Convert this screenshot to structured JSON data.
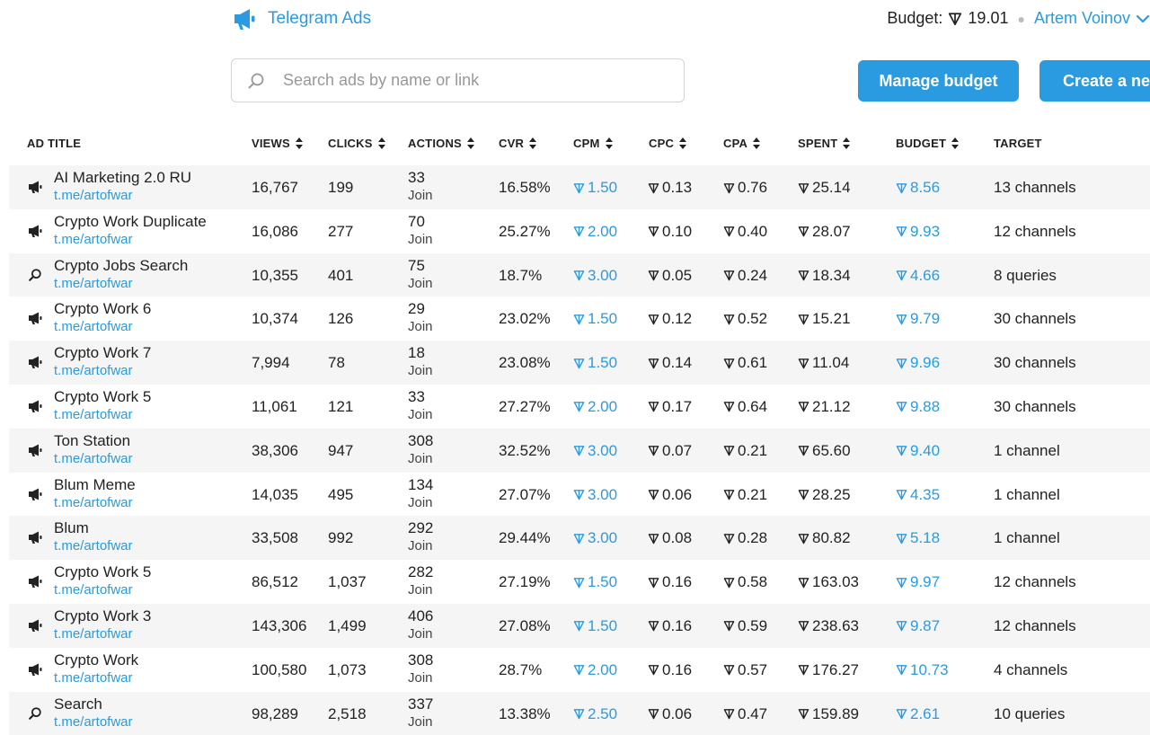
{
  "brand": {
    "name": "Telegram Ads"
  },
  "header": {
    "budget_label": "Budget:",
    "budget_value": "19.01",
    "user_name": "Artem Voinov"
  },
  "search": {
    "placeholder": "Search ads by name or link",
    "value": ""
  },
  "buttons": {
    "manage_budget": "Manage budget",
    "create_new": "Create a new ad"
  },
  "columns": {
    "title": "AD TITLE",
    "views": "VIEWS",
    "clicks": "CLICKS",
    "actions": "ACTIONS",
    "cvr": "CVR",
    "cpm": "CPM",
    "cpc": "CPC",
    "cpa": "CPA",
    "spent": "SPENT",
    "budget": "BUDGET",
    "target": "TARGET"
  },
  "colors": {
    "accent": "#2a9be0",
    "row_alt": "#f5f5f5"
  },
  "rows": [
    {
      "type": "channel",
      "title": "AI Marketing 2.0 RU",
      "link": "t.me/artofwar",
      "views": "16,767",
      "clicks": "199",
      "actions": "33",
      "action_label": "Join",
      "cvr": "16.58%",
      "cpm": "1.50",
      "cpc": "0.13",
      "cpa": "0.76",
      "spent": "25.14",
      "budget": "8.56",
      "target": "13 channels"
    },
    {
      "type": "channel",
      "title": "Crypto Work Duplicate",
      "link": "t.me/artofwar",
      "views": "16,086",
      "clicks": "277",
      "actions": "70",
      "action_label": "Join",
      "cvr": "25.27%",
      "cpm": "2.00",
      "cpc": "0.10",
      "cpa": "0.40",
      "spent": "28.07",
      "budget": "9.93",
      "target": "12 channels"
    },
    {
      "type": "search",
      "title": "Crypto Jobs Search",
      "link": "t.me/artofwar",
      "views": "10,355",
      "clicks": "401",
      "actions": "75",
      "action_label": "Join",
      "cvr": "18.7%",
      "cpm": "3.00",
      "cpc": "0.05",
      "cpa": "0.24",
      "spent": "18.34",
      "budget": "4.66",
      "target": "8 queries"
    },
    {
      "type": "channel",
      "title": "Crypto Work 6",
      "link": "t.me/artofwar",
      "views": "10,374",
      "clicks": "126",
      "actions": "29",
      "action_label": "Join",
      "cvr": "23.02%",
      "cpm": "1.50",
      "cpc": "0.12",
      "cpa": "0.52",
      "spent": "15.21",
      "budget": "9.79",
      "target": "30 channels"
    },
    {
      "type": "channel",
      "title": "Crypto Work 7",
      "link": "t.me/artofwar",
      "views": "7,994",
      "clicks": "78",
      "actions": "18",
      "action_label": "Join",
      "cvr": "23.08%",
      "cpm": "1.50",
      "cpc": "0.14",
      "cpa": "0.61",
      "spent": "11.04",
      "budget": "9.96",
      "target": "30 channels"
    },
    {
      "type": "channel",
      "title": "Crypto Work 5",
      "link": "t.me/artofwar",
      "views": "11,061",
      "clicks": "121",
      "actions": "33",
      "action_label": "Join",
      "cvr": "27.27%",
      "cpm": "2.00",
      "cpc": "0.17",
      "cpa": "0.64",
      "spent": "21.12",
      "budget": "9.88",
      "target": "30 channels"
    },
    {
      "type": "channel",
      "title": "Ton Station",
      "link": "t.me/artofwar",
      "views": "38,306",
      "clicks": "947",
      "actions": "308",
      "action_label": "Join",
      "cvr": "32.52%",
      "cpm": "3.00",
      "cpc": "0.07",
      "cpa": "0.21",
      "spent": "65.60",
      "budget": "9.40",
      "target": "1 channel"
    },
    {
      "type": "channel",
      "title": "Blum Meme",
      "link": "t.me/artofwar",
      "views": "14,035",
      "clicks": "495",
      "actions": "134",
      "action_label": "Join",
      "cvr": "27.07%",
      "cpm": "3.00",
      "cpc": "0.06",
      "cpa": "0.21",
      "spent": "28.25",
      "budget": "4.35",
      "target": "1 channel"
    },
    {
      "type": "channel",
      "title": "Blum",
      "link": "t.me/artofwar",
      "views": "33,508",
      "clicks": "992",
      "actions": "292",
      "action_label": "Join",
      "cvr": "29.44%",
      "cpm": "3.00",
      "cpc": "0.08",
      "cpa": "0.28",
      "spent": "80.82",
      "budget": "5.18",
      "target": "1 channel"
    },
    {
      "type": "channel",
      "title": "Crypto Work 5",
      "link": "t.me/artofwar",
      "views": "86,512",
      "clicks": "1,037",
      "actions": "282",
      "action_label": "Join",
      "cvr": "27.19%",
      "cpm": "1.50",
      "cpc": "0.16",
      "cpa": "0.58",
      "spent": "163.03",
      "budget": "9.97",
      "target": "12 channels"
    },
    {
      "type": "channel",
      "title": "Crypto Work 3",
      "link": "t.me/artofwar",
      "views": "143,306",
      "clicks": "1,499",
      "actions": "406",
      "action_label": "Join",
      "cvr": "27.08%",
      "cpm": "1.50",
      "cpc": "0.16",
      "cpa": "0.59",
      "spent": "238.63",
      "budget": "9.87",
      "target": "12 channels"
    },
    {
      "type": "channel",
      "title": "Crypto Work",
      "link": "t.me/artofwar",
      "views": "100,580",
      "clicks": "1,073",
      "actions": "308",
      "action_label": "Join",
      "cvr": "28.7%",
      "cpm": "2.00",
      "cpc": "0.16",
      "cpa": "0.57",
      "spent": "176.27",
      "budget": "10.73",
      "target": "4 channels"
    },
    {
      "type": "search",
      "title": "Search",
      "link": "t.me/artofwar",
      "views": "98,289",
      "clicks": "2,518",
      "actions": "337",
      "action_label": "Join",
      "cvr": "13.38%",
      "cpm": "2.50",
      "cpc": "0.06",
      "cpa": "0.47",
      "spent": "159.89",
      "budget": "2.61",
      "target": "10 queries"
    }
  ]
}
